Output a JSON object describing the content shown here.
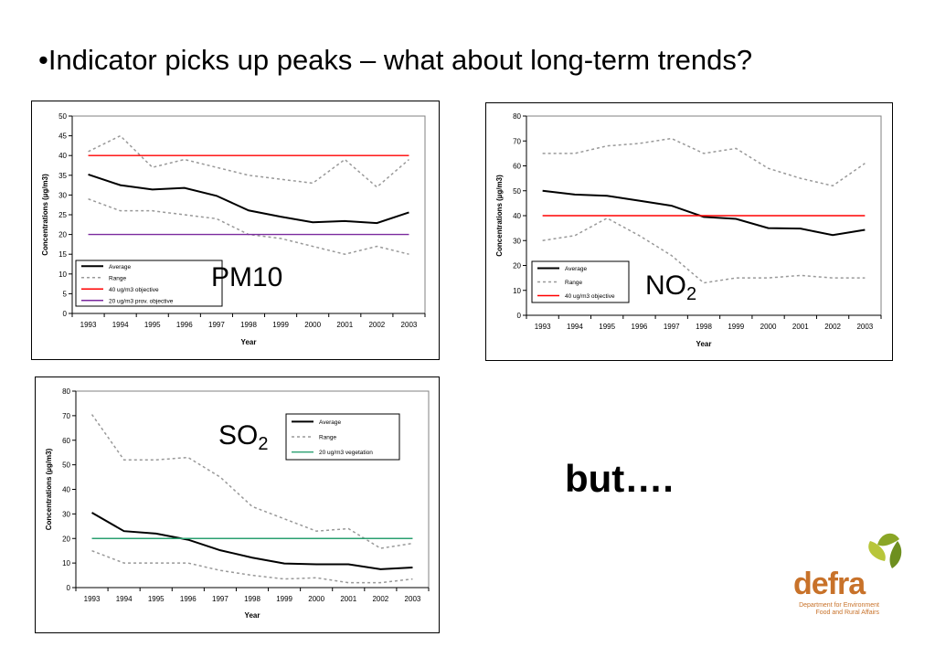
{
  "slide": {
    "headline": "•Indicator picks up peaks – what about long-term  trends?",
    "but_text": "but….",
    "logo": {
      "word": "defra",
      "line1": "Department for Environment",
      "line2": "Food and Rural Affairs"
    }
  },
  "charts_meta": {
    "pm10_label": "PM10",
    "no2_label": "NO",
    "no2_sub": "2",
    "so2_label": "SO",
    "so2_sub": "2"
  },
  "chart_data": [
    {
      "id": "pm10",
      "type": "line",
      "title": "",
      "xlabel": "Year",
      "ylabel": "Concentrations (µg/m3)",
      "ylim": [
        0,
        50
      ],
      "ytick_step": 5,
      "grid": false,
      "legend_position": "bottom-left",
      "x": [
        "1993",
        "1994",
        "1995",
        "1996",
        "1997",
        "1998",
        "1999",
        "2000",
        "2001",
        "2002",
        "2003"
      ],
      "series": [
        {
          "name": "Average",
          "color": "#000000",
          "style": "solid",
          "values": [
            35.2,
            32.5,
            31.4,
            31.8,
            29.8,
            26.1,
            24.5,
            23.1,
            23.4,
            22.9,
            25.6
          ]
        },
        {
          "name": "Range",
          "color": "#999999",
          "style": "dashed",
          "values": [
            41,
            45,
            37,
            39,
            37,
            35,
            34,
            33,
            39,
            32,
            39
          ]
        },
        {
          "name": "",
          "legend": false,
          "color": "#999999",
          "style": "dashed",
          "values": [
            29,
            26,
            26,
            25,
            24,
            20,
            19,
            17,
            15,
            17,
            15
          ]
        },
        {
          "name": "40 ug/m3 objective",
          "color": "#ff0000",
          "style": "solid",
          "values": [
            40,
            40,
            40,
            40,
            40,
            40,
            40,
            40,
            40,
            40,
            40
          ]
        },
        {
          "name": "20 ug/m3 prov. objective",
          "color": "#7a2a9e",
          "style": "solid",
          "values": [
            20,
            20,
            20,
            20,
            20,
            20,
            20,
            20,
            20,
            20,
            20
          ]
        }
      ]
    },
    {
      "id": "no2",
      "type": "line",
      "title": "",
      "xlabel": "Year",
      "ylabel": "Concentrations (µg/m3)",
      "ylim": [
        0,
        80
      ],
      "ytick_step": 10,
      "grid": false,
      "legend_position": "bottom-left",
      "x": [
        "1993",
        "1994",
        "1995",
        "1996",
        "1997",
        "1998",
        "1999",
        "2000",
        "2001",
        "2002",
        "2003"
      ],
      "series": [
        {
          "name": "Average",
          "color": "#000000",
          "style": "solid",
          "values": [
            50,
            48.5,
            48,
            46,
            44,
            39.5,
            38.7,
            35,
            34.8,
            32.2,
            34.3
          ]
        },
        {
          "name": "Range",
          "color": "#999999",
          "style": "dashed",
          "values": [
            65,
            65,
            68,
            69,
            71,
            65,
            67,
            59,
            55,
            52,
            61
          ]
        },
        {
          "name": "",
          "legend": false,
          "color": "#999999",
          "style": "dashed",
          "values": [
            30,
            32,
            39,
            32,
            24,
            13,
            15,
            15,
            16,
            15,
            15
          ]
        },
        {
          "name": "40 ug/m3 objective",
          "color": "#ff0000",
          "style": "solid",
          "values": [
            40,
            40,
            40,
            40,
            40,
            40,
            40,
            40,
            40,
            40,
            40
          ]
        }
      ]
    },
    {
      "id": "so2",
      "type": "line",
      "title": "",
      "xlabel": "Year",
      "ylabel": "Concentrations (µg/m3)",
      "ylim": [
        0,
        80
      ],
      "ytick_step": 10,
      "grid": false,
      "legend_position": "top-right",
      "x": [
        "1993",
        "1994",
        "1995",
        "1996",
        "1997",
        "1998",
        "1999",
        "2000",
        "2001",
        "2002",
        "2003"
      ],
      "series": [
        {
          "name": "Average",
          "color": "#000000",
          "style": "solid",
          "values": [
            30.5,
            23,
            22,
            19.5,
            15.2,
            12.2,
            9.8,
            9.5,
            9.5,
            7.5,
            8.2
          ]
        },
        {
          "name": "Range",
          "color": "#999999",
          "style": "dashed",
          "values": [
            70.5,
            52,
            52,
            53,
            45,
            33,
            28,
            23,
            24,
            16,
            18
          ]
        },
        {
          "name": "",
          "legend": false,
          "color": "#999999",
          "style": "dashed",
          "values": [
            15,
            10,
            10,
            10,
            7,
            5,
            3.5,
            4,
            2,
            2,
            3.5
          ]
        },
        {
          "name": "20 ug/m3 vegetation",
          "color": "#2aa070",
          "style": "solid",
          "values": [
            20,
            20,
            20,
            20,
            20,
            20,
            20,
            20,
            20,
            20,
            20
          ]
        }
      ]
    }
  ]
}
